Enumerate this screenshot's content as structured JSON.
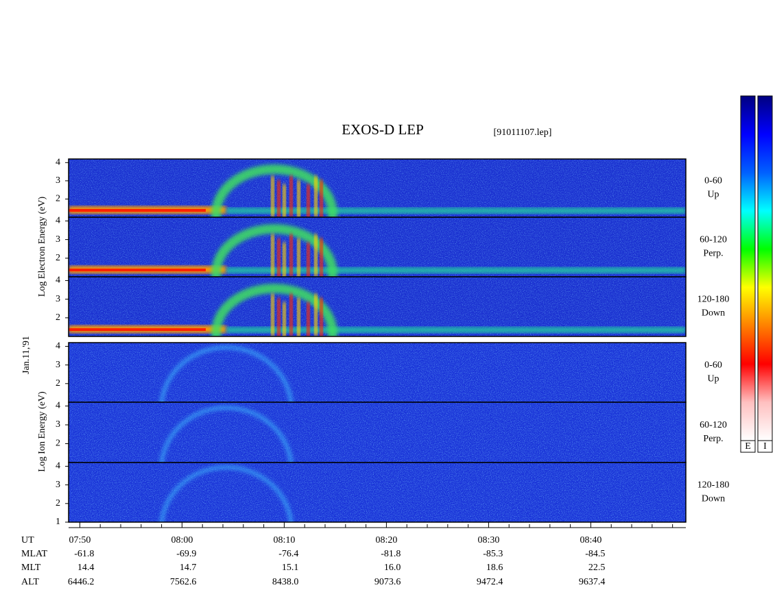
{
  "chart_data": {
    "type": "spectrogram",
    "title": "EXOS-D LEP",
    "subtitle": "[91011107.lep]",
    "date_label": "Jan.11,'91",
    "electron_axis_label": "Log Electron Energy (eV)",
    "ion_axis_label": "Log Ion Energy (eV)",
    "xlim": [
      468.9,
      529.3
    ],
    "xticks": [
      {
        "value": 470,
        "label": "07:50"
      },
      {
        "value": 480,
        "label": "08:00"
      },
      {
        "value": 490,
        "label": "08:10"
      },
      {
        "value": 500,
        "label": "08:20"
      },
      {
        "value": 510,
        "label": "08:30"
      },
      {
        "value": 520,
        "label": "08:40"
      }
    ],
    "x_minor_divisions": 5,
    "panels": [
      {
        "group": "electron",
        "label_top": "0-60",
        "label_bottom": "Up",
        "ylim": [
          1,
          4.2
        ],
        "yticks": [
          2,
          3,
          4
        ]
      },
      {
        "group": "electron",
        "label_top": "60-120",
        "label_bottom": "Perp.",
        "ylim": [
          1,
          4.2
        ],
        "yticks": [
          2,
          3,
          4
        ]
      },
      {
        "group": "electron",
        "label_top": "120-180",
        "label_bottom": "Down",
        "ylim": [
          1,
          4.2
        ],
        "yticks": [
          2,
          3,
          4
        ]
      },
      {
        "group": "ion",
        "label_top": "0-60",
        "label_bottom": "Up",
        "ylim": [
          1,
          4.2
        ],
        "yticks": [
          2,
          3,
          4
        ]
      },
      {
        "group": "ion",
        "label_top": "60-120",
        "label_bottom": "Perp.",
        "ylim": [
          1,
          4.2
        ],
        "yticks": [
          2,
          3,
          4
        ]
      },
      {
        "group": "ion",
        "label_top": "120-180",
        "label_bottom": "Down",
        "ylim": [
          1,
          4.2
        ],
        "yticks": [
          1,
          2,
          3,
          4
        ]
      }
    ],
    "ephemeris": [
      {
        "name": "UT"
      },
      {
        "name": "MLAT",
        "values": [
          "-61.8",
          "-69.9",
          "-76.4",
          "-81.8",
          "-85.3",
          "-84.5"
        ]
      },
      {
        "name": "MLT",
        "values": [
          "14.4",
          "14.7",
          "15.1",
          "16.0",
          "18.6",
          "22.5"
        ]
      },
      {
        "name": "ALT",
        "values": [
          "6446.2",
          "7562.6",
          "8438.0",
          "9073.6",
          "9472.4",
          "9637.4"
        ]
      }
    ],
    "colorbars": [
      "E",
      "I"
    ],
    "colormap": [
      "#000080",
      "#0000ff",
      "#0060ff",
      "#00ffff",
      "#00ff00",
      "#ffff00",
      "#ff8000",
      "#ff0000",
      "#ffc0c0",
      "#ffffff"
    ]
  }
}
